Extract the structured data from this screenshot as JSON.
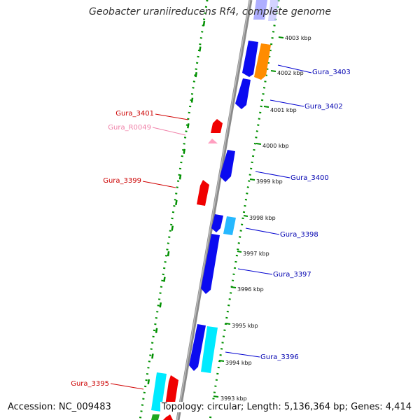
{
  "title": "Geobacter uraniireducens Rf4, complete genome",
  "accession": "Accession: NC_009483",
  "summary": "Topology: circular; Length: 5,136,364 bp; Genes: 4,414",
  "colors": {
    "blue": "#0b0bf0",
    "cyan": "#00eaff",
    "light_blue": "#26b8ff",
    "orange": "#ff8c00",
    "red": "#f00000",
    "pink": "#ff9fc0",
    "green": "#1fa81f",
    "backbone": "#8c8c8c",
    "ring_dots": "#009000",
    "label_red": "#cc0000",
    "label_blue": "#0000b0",
    "label_pink": "#f080a8"
  },
  "ticks": [
    {
      "label": "4003 kbp"
    },
    {
      "label": "4002 kbp"
    },
    {
      "label": "4001 kbp"
    },
    {
      "label": "4000 kbp"
    },
    {
      "label": "3999 kbp"
    },
    {
      "label": "3998 kbp"
    },
    {
      "label": "3997 kbp"
    },
    {
      "label": "3996 kbp"
    },
    {
      "label": "3995 kbp"
    },
    {
      "label": "3994 kbp"
    },
    {
      "label": "3993 kbp"
    }
  ],
  "genes": [
    {
      "name": "Gura_3403",
      "strand": "plus",
      "color": "blue"
    },
    {
      "name": "Gura_3402",
      "strand": "plus",
      "color": "blue"
    },
    {
      "name": "Gura_3401",
      "strand": "minus",
      "color": "red"
    },
    {
      "name": "Gura_R0049",
      "strand": "minus",
      "color": "pink"
    },
    {
      "name": "Gura_3400",
      "strand": "plus",
      "color": "blue"
    },
    {
      "name": "Gura_3399",
      "strand": "minus",
      "color": "red"
    },
    {
      "name": "Gura_3398",
      "strand": "plus",
      "color": "light_blue"
    },
    {
      "name": "Gura_3397",
      "strand": "plus",
      "color": "blue"
    },
    {
      "name": "Gura_3396",
      "strand": "plus",
      "color": "cyan"
    },
    {
      "name": "Gura_3395",
      "strand": "minus",
      "color": "red"
    }
  ]
}
